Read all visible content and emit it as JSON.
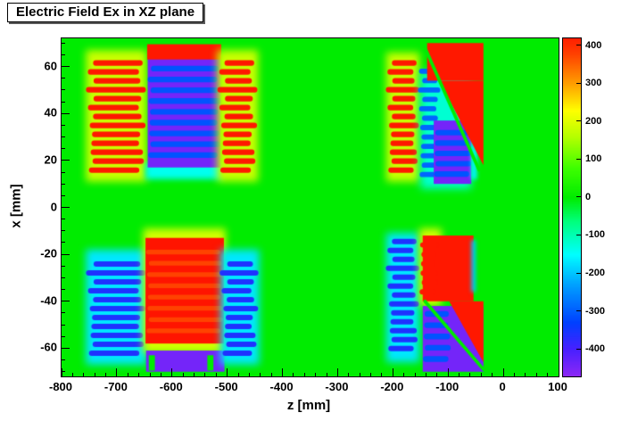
{
  "chart_data": {
    "type": "heatmap",
    "title": "Electric Field Ex in XZ plane",
    "xlabel": "z [mm]",
    "ylabel": "x [mm]",
    "x_range": [
      -800,
      100
    ],
    "y_range": [
      -72,
      72
    ],
    "x_ticks": [
      -800,
      -700,
      -600,
      -500,
      -400,
      -300,
      -200,
      -100,
      0,
      100
    ],
    "y_ticks": [
      -60,
      -40,
      -20,
      0,
      20,
      40,
      60
    ],
    "x_minor_step": 20,
    "y_minor_step": 5,
    "background_value": 0,
    "colorbar": {
      "vmin": -470,
      "vmax": 420,
      "ticks": [
        400,
        300,
        200,
        100,
        0,
        -100,
        -200,
        -300,
        -400
      ],
      "stops": [
        {
          "v": -470,
          "c": [
            140,
            40,
            245
          ]
        },
        {
          "v": -400,
          "c": [
            72,
            32,
            255
          ]
        },
        {
          "v": -330,
          "c": [
            0,
            64,
            255
          ]
        },
        {
          "v": -230,
          "c": [
            0,
            160,
            255
          ]
        },
        {
          "v": -150,
          "c": [
            0,
            255,
            255
          ]
        },
        {
          "v": -60,
          "c": [
            0,
            255,
            120
          ]
        },
        {
          "v": 0,
          "c": [
            0,
            236,
            0
          ]
        },
        {
          "v": 80,
          "c": [
            64,
            255,
            0
          ]
        },
        {
          "v": 160,
          "c": [
            180,
            255,
            0
          ]
        },
        {
          "v": 230,
          "c": [
            255,
            255,
            0
          ]
        },
        {
          "v": 300,
          "c": [
            255,
            160,
            0
          ]
        },
        {
          "v": 380,
          "c": [
            255,
            64,
            0
          ]
        },
        {
          "v": 460,
          "c": [
            255,
            0,
            0
          ]
        }
      ]
    },
    "features": [
      {
        "kind": "rect",
        "z": [
          -756,
          -646
        ],
        "x": [
          11,
          67
        ],
        "v": 180,
        "blur": 4
      },
      {
        "kind": "comb",
        "z": [
          -751,
          -651
        ],
        "x": [
          14,
          64
        ],
        "v": 430,
        "pitch": 3.8,
        "stripe": 2.3,
        "scallop": 14
      },
      {
        "kind": "rect",
        "z": [
          -648,
          -508
        ],
        "x": [
          12,
          19
        ],
        "v": -140,
        "blur": 3
      },
      {
        "kind": "rect",
        "z": [
          -644,
          -512
        ],
        "x": [
          17,
          64
        ],
        "v": -445
      },
      {
        "kind": "comb",
        "z": [
          -641,
          -515
        ],
        "x": [
          20,
          62
        ],
        "v": -310,
        "pitch": 4.6,
        "stripe": 2.4,
        "scallop": 8
      },
      {
        "kind": "rect",
        "z": [
          -645,
          -511
        ],
        "x": [
          63,
          69.5
        ],
        "v": 430
      },
      {
        "kind": "rect",
        "z": [
          -518,
          -444
        ],
        "x": [
          11,
          67
        ],
        "v": 180,
        "blur": 4
      },
      {
        "kind": "comb",
        "z": [
          -513,
          -449
        ],
        "x": [
          14,
          64
        ],
        "v": 430,
        "pitch": 3.8,
        "stripe": 2.3,
        "scallop": 14
      },
      {
        "kind": "rect",
        "z": [
          -756,
          -646
        ],
        "x": [
          -67,
          -18
        ],
        "v": -170,
        "blur": 4
      },
      {
        "kind": "comb",
        "z": [
          -751,
          -651
        ],
        "x": [
          -64,
          -22
        ],
        "v": -360,
        "pitch": 3.8,
        "stripe": 2.3,
        "scallop": 14
      },
      {
        "kind": "rect",
        "z": [
          -652,
          -503
        ],
        "x": [
          -62,
          -9
        ],
        "v": 190,
        "blur": 4
      },
      {
        "kind": "rect",
        "z": [
          -648,
          -506
        ],
        "x": [
          -58,
          -13
        ],
        "v": 435
      },
      {
        "kind": "comb",
        "z": [
          -645,
          -509
        ],
        "x": [
          -55,
          -16
        ],
        "v": 330,
        "pitch": 4.8,
        "stripe": 2.0,
        "scallop": 8,
        "alpha": 0.45
      },
      {
        "kind": "rect",
        "z": [
          -647,
          -505
        ],
        "x": [
          -70,
          -61
        ],
        "v": -445
      },
      {
        "kind": "rect",
        "z": [
          -642,
          -631
        ],
        "x": [
          -69.5,
          -63
        ],
        "v": 0
      },
      {
        "kind": "rect",
        "z": [
          -536,
          -525
        ],
        "x": [
          -69.5,
          -63
        ],
        "v": 0
      },
      {
        "kind": "rect",
        "z": [
          -512,
          -442
        ],
        "x": [
          -67,
          -18
        ],
        "v": -170,
        "blur": 4
      },
      {
        "kind": "comb",
        "z": [
          -509,
          -447
        ],
        "x": [
          -64,
          -22
        ],
        "v": -360,
        "pitch": 3.8,
        "stripe": 2.3,
        "scallop": 14
      },
      {
        "kind": "rect",
        "z": [
          -212,
          -152
        ],
        "x": [
          11,
          66
        ],
        "v": 180,
        "blur": 4
      },
      {
        "kind": "comb",
        "z": [
          -208,
          -156
        ],
        "x": [
          14,
          62
        ],
        "v": 430,
        "pitch": 3.8,
        "stripe": 2.3,
        "scallop": 12
      },
      {
        "kind": "rect",
        "z": [
          -150,
          -58
        ],
        "x": [
          8,
          58
        ],
        "v": -120,
        "blur": 5
      },
      {
        "kind": "comb",
        "z": [
          -150,
          -118
        ],
        "x": [
          12,
          58
        ],
        "v": -290,
        "pitch": 4.0,
        "stripe": 2.2,
        "scallop": 8
      },
      {
        "kind": "rect",
        "z": [
          -126,
          -58
        ],
        "x": [
          10,
          37
        ],
        "v": -445
      },
      {
        "kind": "comb",
        "z": [
          -123,
          -61
        ],
        "x": [
          12,
          35
        ],
        "v": -310,
        "pitch": 4.4,
        "stripe": 2.3,
        "scallop": 6
      },
      {
        "kind": "rect",
        "z": [
          -58,
          -48
        ],
        "x": [
          12,
          36
        ],
        "v": -160,
        "blur": 2
      },
      {
        "kind": "rect",
        "z": [
          -138,
          -36
        ],
        "x": [
          54,
          70
        ],
        "v": 430
      },
      {
        "kind": "poly",
        "pts": [
          [
            -116,
            54
          ],
          [
            -36,
            54
          ],
          [
            -36,
            18
          ]
        ],
        "v": 430
      },
      {
        "kind": "line",
        "from": [
          -140,
          67
        ],
        "to": [
          -44,
          16
        ],
        "v": 0,
        "w": 1.4
      },
      {
        "kind": "rect",
        "z": [
          -212,
          -152
        ],
        "x": [
          -66,
          -11
        ],
        "v": -170,
        "blur": 4
      },
      {
        "kind": "comb",
        "z": [
          -208,
          -156
        ],
        "x": [
          -62,
          -14
        ],
        "v": -360,
        "pitch": 3.8,
        "stripe": 2.3,
        "scallop": 12
      },
      {
        "kind": "rect",
        "z": [
          -152,
          -112
        ],
        "x": [
          -42,
          -9
        ],
        "v": 190,
        "blur": 4
      },
      {
        "kind": "rect",
        "z": [
          -146,
          -54
        ],
        "x": [
          -40,
          -12
        ],
        "v": 430
      },
      {
        "kind": "comb",
        "z": [
          -150,
          -120
        ],
        "x": [
          -38,
          -13
        ],
        "v": 430,
        "pitch": 4.0,
        "stripe": 2.2,
        "scallop": 8
      },
      {
        "kind": "rect",
        "z": [
          -58,
          -50
        ],
        "x": [
          -36,
          -14
        ],
        "v": -200,
        "blur": 2
      },
      {
        "kind": "rect",
        "z": [
          -146,
          -36
        ],
        "x": [
          -70,
          -42
        ],
        "v": -445
      },
      {
        "kind": "comb",
        "z": [
          -143,
          -98
        ],
        "x": [
          -67,
          -45
        ],
        "v": -310,
        "pitch": 4.8,
        "stripe": 2.4,
        "scallop": 7
      },
      {
        "kind": "poly",
        "pts": [
          [
            -98,
            -40
          ],
          [
            -36,
            -40
          ],
          [
            -36,
            -66
          ]
        ],
        "v": 430
      },
      {
        "kind": "line",
        "from": [
          -142,
          -40
        ],
        "to": [
          -36,
          -69
        ],
        "v": 0,
        "w": 1.4
      }
    ]
  }
}
